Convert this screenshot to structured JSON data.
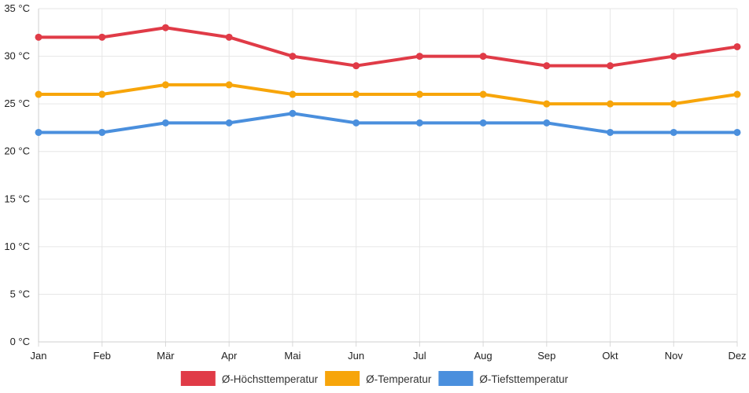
{
  "chart_data": {
    "type": "line",
    "title": "",
    "xlabel": "",
    "ylabel": "",
    "categories": [
      "Jan",
      "Feb",
      "Mär",
      "Apr",
      "Mai",
      "Jun",
      "Jul",
      "Aug",
      "Sep",
      "Okt",
      "Nov",
      "Dez"
    ],
    "y_unit": "°C",
    "ylim": [
      0,
      35
    ],
    "y_ticks": [
      0,
      5,
      10,
      15,
      20,
      25,
      30,
      35
    ],
    "grid": true,
    "legend_position": "bottom",
    "series": [
      {
        "name": "Ø-Höchsttemperatur",
        "color": "#e03b47",
        "values": [
          32,
          32,
          33,
          32,
          30,
          29,
          30,
          30,
          29,
          29,
          30,
          31
        ]
      },
      {
        "name": "Ø-Temperatur",
        "color": "#f7a50a",
        "values": [
          26,
          26,
          27,
          27,
          26,
          26,
          26,
          26,
          25,
          25,
          25,
          26
        ]
      },
      {
        "name": "Ø-Tiefsttemperatur",
        "color": "#4a8fdd",
        "values": [
          22,
          22,
          23,
          23,
          24,
          23,
          23,
          23,
          23,
          22,
          22,
          22
        ]
      }
    ]
  }
}
